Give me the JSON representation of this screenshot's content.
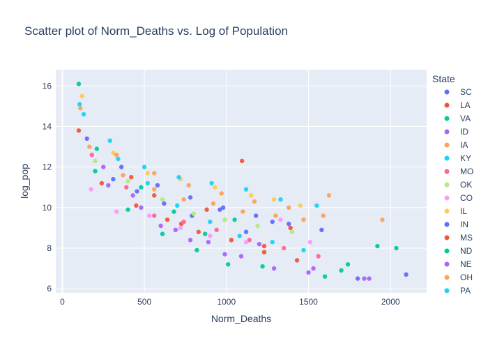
{
  "chart_data": {
    "type": "scatter",
    "title": "Scatter plot of Norm_Deaths vs. Log of Population",
    "xlabel": "Norm_Deaths",
    "ylabel": "log_pop",
    "xlim": [
      -40,
      2220
    ],
    "ylim": [
      5.8,
      16.8
    ],
    "x_ticks": [
      0,
      500,
      1000,
      1500,
      2000
    ],
    "x_tick_labels": [
      "0",
      "500",
      "1000",
      "1500",
      "2000"
    ],
    "y_ticks": [
      6,
      8,
      10,
      12,
      14,
      16
    ],
    "y_tick_labels": [
      "6",
      "8",
      "10",
      "12",
      "14",
      "16"
    ],
    "grid": true,
    "plot_background": "#e5ecf6",
    "grid_color": "#ffffff",
    "legend_title": "State",
    "legend_placement": "right",
    "series": [
      {
        "name": "SC",
        "color": "#636efa",
        "values": [
          [
            310,
            11.4
          ],
          [
            455,
            10.8
          ],
          [
            620,
            10.2
          ],
          [
            790,
            9.6
          ],
          [
            960,
            9.9
          ],
          [
            1120,
            8.8
          ],
          [
            1280,
            9.3
          ],
          [
            2095,
            6.7
          ],
          [
            1800,
            6.5
          ]
        ]
      },
      {
        "name": "LA",
        "color": "#EF553B",
        "values": [
          [
            100,
            13.8
          ],
          [
            420,
            11.5
          ],
          [
            560,
            10.6
          ],
          [
            725,
            9.2
          ],
          [
            880,
            9.9
          ],
          [
            1095,
            12.3
          ],
          [
            1230,
            8.1
          ],
          [
            1390,
            9.0
          ]
        ]
      },
      {
        "name": "VA",
        "color": "#00cc96",
        "values": [
          [
            100,
            16.1
          ],
          [
            210,
            12.9
          ],
          [
            480,
            11.0
          ],
          [
            680,
            9.8
          ],
          [
            870,
            8.7
          ],
          [
            1050,
            9.4
          ],
          [
            1740,
            7.2
          ],
          [
            1920,
            8.1
          ],
          [
            2035,
            8.0
          ]
        ]
      },
      {
        "name": "ID",
        "color": "#ab63fa",
        "values": [
          [
            250,
            12.0
          ],
          [
            430,
            10.6
          ],
          [
            600,
            9.1
          ],
          [
            780,
            8.4
          ],
          [
            990,
            7.7
          ],
          [
            1200,
            8.2
          ],
          [
            1530,
            7.0
          ],
          [
            1870,
            6.5
          ]
        ]
      },
      {
        "name": "IA",
        "color": "#FFA15A",
        "values": [
          [
            165,
            13.0
          ],
          [
            370,
            11.6
          ],
          [
            560,
            10.9
          ],
          [
            740,
            10.4
          ],
          [
            920,
            10.2
          ],
          [
            1100,
            9.8
          ],
          [
            1300,
            9.6
          ],
          [
            1470,
            9.4
          ],
          [
            1625,
            10.6
          ],
          [
            1950,
            9.4
          ]
        ]
      },
      {
        "name": "KY",
        "color": "#19d3f3",
        "values": [
          [
            130,
            14.6
          ],
          [
            340,
            12.4
          ],
          [
            520,
            11.2
          ],
          [
            700,
            10.1
          ],
          [
            900,
            9.3
          ],
          [
            1080,
            8.6
          ],
          [
            1280,
            8.3
          ],
          [
            1470,
            7.9
          ]
        ]
      },
      {
        "name": "MO",
        "color": "#FF6692",
        "values": [
          [
            180,
            12.6
          ],
          [
            390,
            11.0
          ],
          [
            560,
            9.6
          ],
          [
            740,
            9.3
          ],
          [
            940,
            8.9
          ],
          [
            1140,
            8.4
          ],
          [
            1350,
            8.0
          ],
          [
            1560,
            7.6
          ]
        ]
      },
      {
        "name": "OK",
        "color": "#B6E880",
        "values": [
          [
            200,
            12.3
          ],
          [
            400,
            11.3
          ],
          [
            610,
            10.4
          ],
          [
            800,
            9.7
          ],
          [
            990,
            9.4
          ],
          [
            1190,
            9.1
          ],
          [
            1400,
            8.8
          ]
        ]
      },
      {
        "name": "CO",
        "color": "#FF97FF",
        "values": [
          [
            175,
            10.9
          ],
          [
            330,
            9.8
          ],
          [
            530,
            9.6
          ],
          [
            720,
            9.0
          ],
          [
            900,
            8.6
          ],
          [
            1120,
            8.3
          ],
          [
            1330,
            9.4
          ],
          [
            1510,
            8.3
          ]
        ]
      },
      {
        "name": "IL",
        "color": "#FECB52",
        "values": [
          [
            120,
            15.5
          ],
          [
            310,
            12.7
          ],
          [
            520,
            11.7
          ],
          [
            720,
            11.4
          ],
          [
            930,
            11.0
          ],
          [
            1150,
            10.6
          ],
          [
            1290,
            10.4
          ],
          [
            1450,
            10.1
          ]
        ]
      },
      {
        "name": "IN",
        "color": "#636efa",
        "values": [
          [
            150,
            13.4
          ],
          [
            360,
            12.0
          ],
          [
            580,
            11.1
          ],
          [
            780,
            10.5
          ],
          [
            980,
            10.0
          ],
          [
            1180,
            9.6
          ],
          [
            1380,
            9.2
          ],
          [
            1580,
            8.9
          ]
        ]
      },
      {
        "name": "MS",
        "color": "#EF553B",
        "values": [
          [
            240,
            11.2
          ],
          [
            450,
            10.1
          ],
          [
            640,
            9.4
          ],
          [
            830,
            8.8
          ],
          [
            1030,
            8.4
          ],
          [
            1230,
            7.8
          ],
          [
            1430,
            7.4
          ]
        ]
      },
      {
        "name": "ND",
        "color": "#00cc96",
        "values": [
          [
            200,
            11.8
          ],
          [
            400,
            9.9
          ],
          [
            610,
            8.7
          ],
          [
            820,
            7.9
          ],
          [
            1010,
            7.2
          ],
          [
            1220,
            7.1
          ],
          [
            1600,
            6.6
          ],
          [
            1700,
            6.9
          ]
        ]
      },
      {
        "name": "NE",
        "color": "#ab63fa",
        "values": [
          [
            280,
            11.1
          ],
          [
            480,
            10.0
          ],
          [
            690,
            8.9
          ],
          [
            890,
            8.3
          ],
          [
            1090,
            7.6
          ],
          [
            1290,
            7.0
          ],
          [
            1500,
            6.8
          ],
          [
            1840,
            6.5
          ]
        ]
      },
      {
        "name": "OH",
        "color": "#FFA15A",
        "values": [
          [
            110,
            14.9
          ],
          [
            330,
            12.6
          ],
          [
            560,
            11.7
          ],
          [
            770,
            11.1
          ],
          [
            970,
            10.7
          ],
          [
            1170,
            10.3
          ],
          [
            1380,
            10.0
          ],
          [
            1590,
            9.6
          ]
        ]
      },
      {
        "name": "PA",
        "color": "#19d3f3",
        "values": [
          [
            105,
            15.1
          ],
          [
            290,
            13.3
          ],
          [
            500,
            12.0
          ],
          [
            710,
            11.5
          ],
          [
            910,
            11.2
          ],
          [
            1120,
            10.9
          ],
          [
            1330,
            10.4
          ],
          [
            1550,
            10.1
          ]
        ]
      }
    ]
  }
}
